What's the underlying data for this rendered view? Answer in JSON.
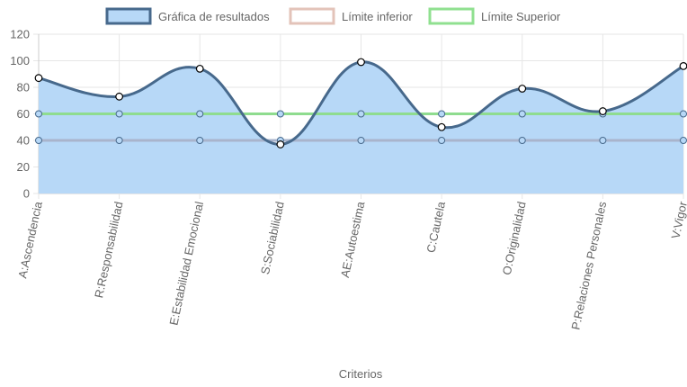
{
  "chart_data": {
    "type": "line",
    "xlabel": "Criterios",
    "ylim": [
      0,
      120
    ],
    "y_ticks": [
      0,
      20,
      40,
      60,
      80,
      100,
      120
    ],
    "grid": true,
    "legend_position": "top",
    "categories": [
      "A:Ascendencia",
      "R:Responsabilidad",
      "E:Estabilidad Emocional",
      "S:Sociabilidad",
      "AE:Autoestima",
      "C:Cautela",
      "O:Originalidad",
      "P:Relaciones Personales",
      "V:Vigor"
    ],
    "series": [
      {
        "name": "Gráfica de resultados",
        "values": [
          87,
          73,
          94,
          37,
          99,
          50,
          79,
          62,
          96
        ],
        "line_color": "#47698c",
        "fill_color": "#b7d8f7",
        "point_fill": "#ffffff",
        "point_stroke": "#000000",
        "filled": true,
        "smooth": true
      },
      {
        "name": "Límite inferior",
        "values": [
          40,
          40,
          40,
          40,
          40,
          40,
          40,
          40,
          40
        ],
        "line_color": "#a9b4cc",
        "legend_color": "#e3c3b9",
        "point_fill": "#b7d8f7",
        "point_stroke": "#47698c",
        "filled": false,
        "smooth": false
      },
      {
        "name": "Límite Superior",
        "values": [
          60,
          60,
          60,
          60,
          60,
          60,
          60,
          60,
          60
        ],
        "line_color": "#8fdc8f",
        "legend_color": "#90e090",
        "point_fill": "#b7d8f7",
        "point_stroke": "#47698c",
        "filled": false,
        "smooth": false
      }
    ]
  }
}
